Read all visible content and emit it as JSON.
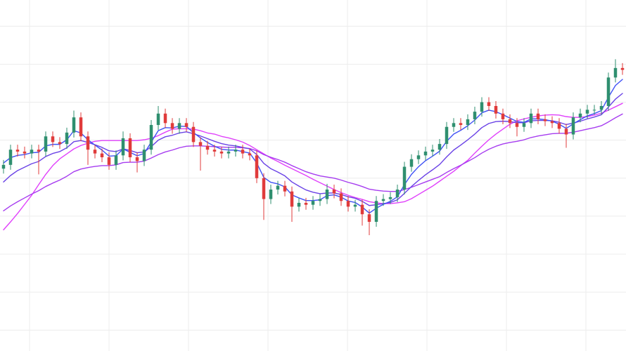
{
  "chart_data": {
    "type": "candlestick",
    "grid": true,
    "grid_color": "#ececec",
    "up_color": "#2f8f6f",
    "down_color": "#e03b3b",
    "xlim": [
      -0.5,
      88.5
    ],
    "xticks": [
      3.7,
      15,
      26.3,
      37.6,
      48.9,
      60.2,
      71.5,
      82.8
    ],
    "ylim": [
      4.5,
      96.9
    ],
    "yticks": [
      10,
      20,
      30,
      40,
      50,
      60,
      70,
      80,
      90
    ],
    "x": [
      0,
      1,
      2,
      3,
      4,
      5,
      6,
      7,
      8,
      9,
      10,
      11,
      12,
      13,
      14,
      15,
      16,
      17,
      18,
      19,
      20,
      21,
      22,
      23,
      24,
      25,
      26,
      27,
      28,
      29,
      30,
      31,
      32,
      33,
      34,
      35,
      36,
      37,
      38,
      39,
      40,
      41,
      42,
      43,
      44,
      45,
      46,
      47,
      48,
      49,
      50,
      51,
      52,
      53,
      54,
      55,
      56,
      57,
      58,
      59,
      60,
      61,
      62,
      63,
      64,
      65,
      66,
      67,
      68,
      69,
      70,
      71,
      72,
      73,
      74,
      75,
      76,
      77,
      78,
      79,
      80,
      81,
      82,
      83,
      84,
      85,
      86,
      87,
      88
    ],
    "open": [
      52.5,
      53.5,
      57.5,
      57.0,
      56.5,
      57.5,
      57.0,
      61.0,
      59.5,
      59.0,
      62.0,
      66.0,
      61.0,
      57.5,
      56.5,
      55.5,
      53.5,
      56.0,
      60.5,
      55.5,
      54.5,
      57.5,
      64.0,
      67.0,
      64.5,
      63.0,
      64.5,
      63.5,
      59.5,
      58.5,
      57.5,
      57.0,
      56.5,
      57.0,
      57.5,
      56.5,
      56.0,
      50.0,
      44.5,
      47.0,
      48.0,
      46.5,
      42.5,
      43.5,
      43.0,
      44.0,
      44.5,
      47.0,
      46.0,
      44.0,
      42.5,
      43.0,
      40.5,
      38.5,
      44.0,
      44.5,
      45.0,
      47.0,
      53.0,
      55.0,
      56.0,
      57.0,
      57.5,
      59.0,
      63.5,
      64.5,
      64.0,
      65.5,
      67.5,
      70.0,
      69.0,
      67.0,
      65.5,
      64.5,
      63.5,
      64.5,
      67.0,
      65.5,
      65.0,
      64.5,
      63.0,
      61.5,
      66.0,
      67.0,
      68.0,
      68.0,
      69.0,
      76.5,
      79.0
    ],
    "high": [
      54.8,
      58.8,
      58.8,
      58.3,
      58.8,
      58.8,
      62.3,
      62.3,
      60.8,
      63.3,
      67.8,
      67.3,
      62.3,
      58.8,
      57.8,
      56.8,
      57.3,
      62.3,
      61.8,
      56.8,
      58.8,
      65.3,
      69.0,
      68.3,
      65.8,
      65.8,
      65.8,
      64.8,
      60.8,
      59.8,
      58.8,
      58.3,
      58.3,
      58.8,
      58.8,
      57.8,
      57.3,
      51.3,
      48.3,
      49.3,
      49.3,
      47.8,
      44.8,
      44.8,
      45.3,
      45.8,
      48.5,
      48.3,
      47.3,
      45.3,
      44.3,
      44.3,
      41.8,
      45.3,
      45.8,
      46.3,
      48.3,
      54.3,
      56.3,
      57.3,
      58.3,
      58.8,
      60.3,
      64.8,
      65.8,
      65.8,
      66.8,
      68.8,
      71.3,
      71.3,
      70.3,
      68.3,
      66.8,
      65.8,
      65.8,
      68.3,
      68.3,
      66.8,
      66.3,
      65.8,
      64.3,
      67.3,
      68.3,
      69.3,
      69.3,
      70.3,
      77.8,
      81.3,
      80.3
    ],
    "low": [
      51.2,
      52.2,
      55.7,
      55.2,
      55.2,
      51.0,
      55.7,
      58.2,
      57.7,
      57.7,
      60.7,
      59.7,
      53.5,
      55.2,
      54.2,
      52.2,
      52.2,
      54.7,
      54.2,
      51.5,
      53.2,
      56.2,
      62.7,
      63.2,
      61.7,
      61.7,
      62.2,
      58.2,
      52.0,
      56.2,
      55.7,
      55.2,
      55.2,
      55.7,
      55.2,
      54.7,
      48.7,
      39.0,
      43.2,
      45.7,
      45.2,
      38.5,
      41.2,
      41.7,
      41.7,
      42.7,
      43.2,
      44.7,
      42.7,
      41.2,
      41.2,
      37.5,
      35.0,
      37.2,
      42.7,
      43.2,
      43.7,
      45.7,
      51.7,
      53.7,
      54.7,
      55.7,
      56.2,
      57.7,
      62.2,
      62.7,
      62.7,
      64.2,
      66.2,
      67.7,
      65.7,
      64.2,
      63.2,
      61.0,
      62.2,
      63.2,
      64.2,
      63.7,
      63.2,
      61.7,
      58.0,
      60.2,
      64.7,
      65.7,
      66.7,
      66.7,
      67.7,
      75.2,
      77.2
    ],
    "close": [
      53.5,
      57.5,
      57.0,
      56.5,
      57.5,
      57.0,
      61.0,
      59.5,
      59.0,
      62.0,
      66.0,
      61.0,
      57.5,
      56.5,
      55.5,
      53.5,
      56.0,
      60.5,
      55.5,
      54.5,
      57.5,
      64.0,
      67.0,
      64.5,
      63.0,
      64.5,
      63.5,
      59.5,
      58.5,
      57.5,
      57.0,
      56.5,
      57.0,
      57.5,
      56.5,
      56.0,
      50.0,
      44.5,
      47.0,
      48.0,
      46.5,
      42.5,
      43.5,
      43.0,
      44.0,
      44.5,
      47.0,
      46.0,
      44.0,
      42.5,
      43.0,
      40.5,
      38.5,
      44.0,
      44.5,
      45.0,
      47.0,
      53.0,
      55.0,
      56.0,
      57.0,
      57.5,
      59.0,
      63.5,
      64.5,
      64.0,
      65.5,
      67.5,
      70.0,
      69.0,
      67.0,
      65.5,
      64.5,
      63.5,
      64.5,
      67.0,
      65.5,
      65.0,
      64.5,
      63.0,
      61.5,
      66.0,
      67.0,
      68.0,
      68.0,
      69.0,
      76.5,
      79.0,
      78.5
    ],
    "series": [
      {
        "color": "#e040fb",
        "values": [
          36.4,
          38.5,
          40.7,
          43.1,
          45.5,
          48.3,
          51.0,
          53.3,
          55.1,
          56.4,
          57.7,
          58.6,
          59.2,
          59.7,
          59.9,
          59.9,
          59.9,
          59.9,
          59.9,
          59.9,
          60.1,
          60.5,
          61.2,
          62.1,
          62.9,
          63.0,
          63.0,
          62.9,
          62.5,
          61.9,
          61.6,
          61.0,
          60.6,
          60.1,
          59.5,
          58.6,
          57.5,
          56.4,
          55.3,
          54.4,
          53.4,
          52.5,
          51.6,
          50.7,
          49.7,
          48.8,
          47.9,
          47.0,
          46.2,
          45.5,
          44.9,
          44.4,
          43.8,
          43.5,
          43.3,
          43.3,
          43.5,
          43.8,
          44.6,
          45.7,
          46.8,
          47.9,
          49.2,
          50.5,
          51.8,
          53.3,
          54.7,
          56.6,
          58.4,
          60.1,
          61.6,
          62.9,
          64.2,
          65.1,
          65.6,
          66.0,
          66.4,
          66.6,
          66.7,
          66.6,
          66.2,
          66.0,
          66.0,
          66.2,
          66.6,
          67.1,
          67.9,
          68.8,
          69.7
        ]
      },
      {
        "color": "#a63cf0",
        "values": [
          41.4,
          42.7,
          43.8,
          44.8,
          45.8,
          46.7,
          47.8,
          48.7,
          49.5,
          50.5,
          51.7,
          52.4,
          52.8,
          53.1,
          53.3,
          53.3,
          53.5,
          54.1,
          54.2,
          54.2,
          54.5,
          55.3,
          56.2,
          56.9,
          57.4,
          58.0,
          58.4,
          58.5,
          58.5,
          58.4,
          58.3,
          58.2,
          58.1,
          58.1,
          58.0,
          57.8,
          57.2,
          56.2,
          55.5,
          54.9,
          54.2,
          53.3,
          52.5,
          51.7,
          51.1,
          50.6,
          50.3,
          50.0,
          49.5,
          48.9,
          48.4,
          47.8,
          47.1,
          46.8,
          46.6,
          46.5,
          46.5,
          47.0,
          47.6,
          48.3,
          49.0,
          49.7,
          50.4,
          51.5,
          52.5,
          53.4,
          54.4,
          55.4,
          56.6,
          57.6,
          58.4,
          59.0,
          59.4,
          59.7,
          60.1,
          60.7,
          61.1,
          61.4,
          61.7,
          61.8,
          61.8,
          62.1,
          62.5,
          62.9,
          63.3,
          63.8,
          64.8,
          65.9,
          66.9
        ]
      },
      {
        "color": "#6a42e6",
        "values": [
          49.0,
          50.7,
          52.0,
          52.9,
          53.8,
          54.4,
          55.7,
          56.5,
          57.0,
          58.0,
          59.6,
          59.9,
          59.4,
          58.8,
          58.1,
          57.2,
          57.0,
          57.7,
          57.3,
          56.7,
          56.9,
          58.3,
          60.0,
          60.9,
          61.3,
          61.9,
          62.2,
          61.7,
          61.1,
          60.4,
          59.7,
          59.1,
          58.7,
          58.5,
          58.1,
          57.7,
          56.2,
          53.9,
          52.5,
          51.6,
          50.6,
          49.0,
          47.9,
          46.9,
          46.3,
          45.9,
          46.1,
          46.1,
          45.7,
          45.1,
          44.7,
          43.9,
          42.8,
          43.0,
          43.3,
          43.6,
          44.3,
          46.0,
          47.8,
          49.4,
          50.9,
          52.2,
          53.6,
          55.6,
          57.4,
          58.7,
          60.1,
          61.6,
          63.3,
          64.4,
          64.9,
          65.0,
          64.9,
          64.6,
          64.6,
          65.1,
          65.2,
          65.2,
          65.1,
          64.7,
          64.1,
          64.5,
          65.0,
          65.6,
          66.1,
          66.7,
          68.7,
          70.8,
          72.3
        ]
      },
      {
        "color": "#3f51f5",
        "values": [
          54.0,
          55.4,
          56.0,
          56.2,
          56.7,
          56.8,
          58.5,
          58.9,
          58.9,
          60.1,
          62.5,
          61.9,
          60.1,
          58.7,
          57.4,
          55.8,
          55.9,
          57.7,
          56.8,
          55.9,
          56.5,
          59.5,
          62.5,
          63.3,
          63.2,
          63.7,
          63.6,
          62.0,
          60.6,
          59.4,
          58.4,
          57.6,
          57.4,
          57.4,
          57.0,
          56.6,
          54.0,
          50.2,
          48.9,
          48.5,
          47.7,
          45.6,
          44.8,
          44.1,
          44.1,
          44.3,
          45.4,
          45.6,
          45.0,
          44.0,
          43.6,
          42.4,
          40.8,
          42.1,
          43.1,
          43.9,
          45.1,
          48.3,
          51.0,
          53.0,
          54.6,
          55.8,
          57.1,
          59.7,
          61.6,
          62.6,
          63.8,
          65.3,
          67.2,
          67.9,
          67.5,
          66.7,
          65.8,
          64.9,
          64.7,
          65.6,
          65.6,
          65.4,
          65.0,
          64.2,
          63.1,
          64.3,
          65.4,
          66.4,
          67.0,
          67.8,
          71.3,
          74.4,
          76.0
        ]
      }
    ]
  }
}
